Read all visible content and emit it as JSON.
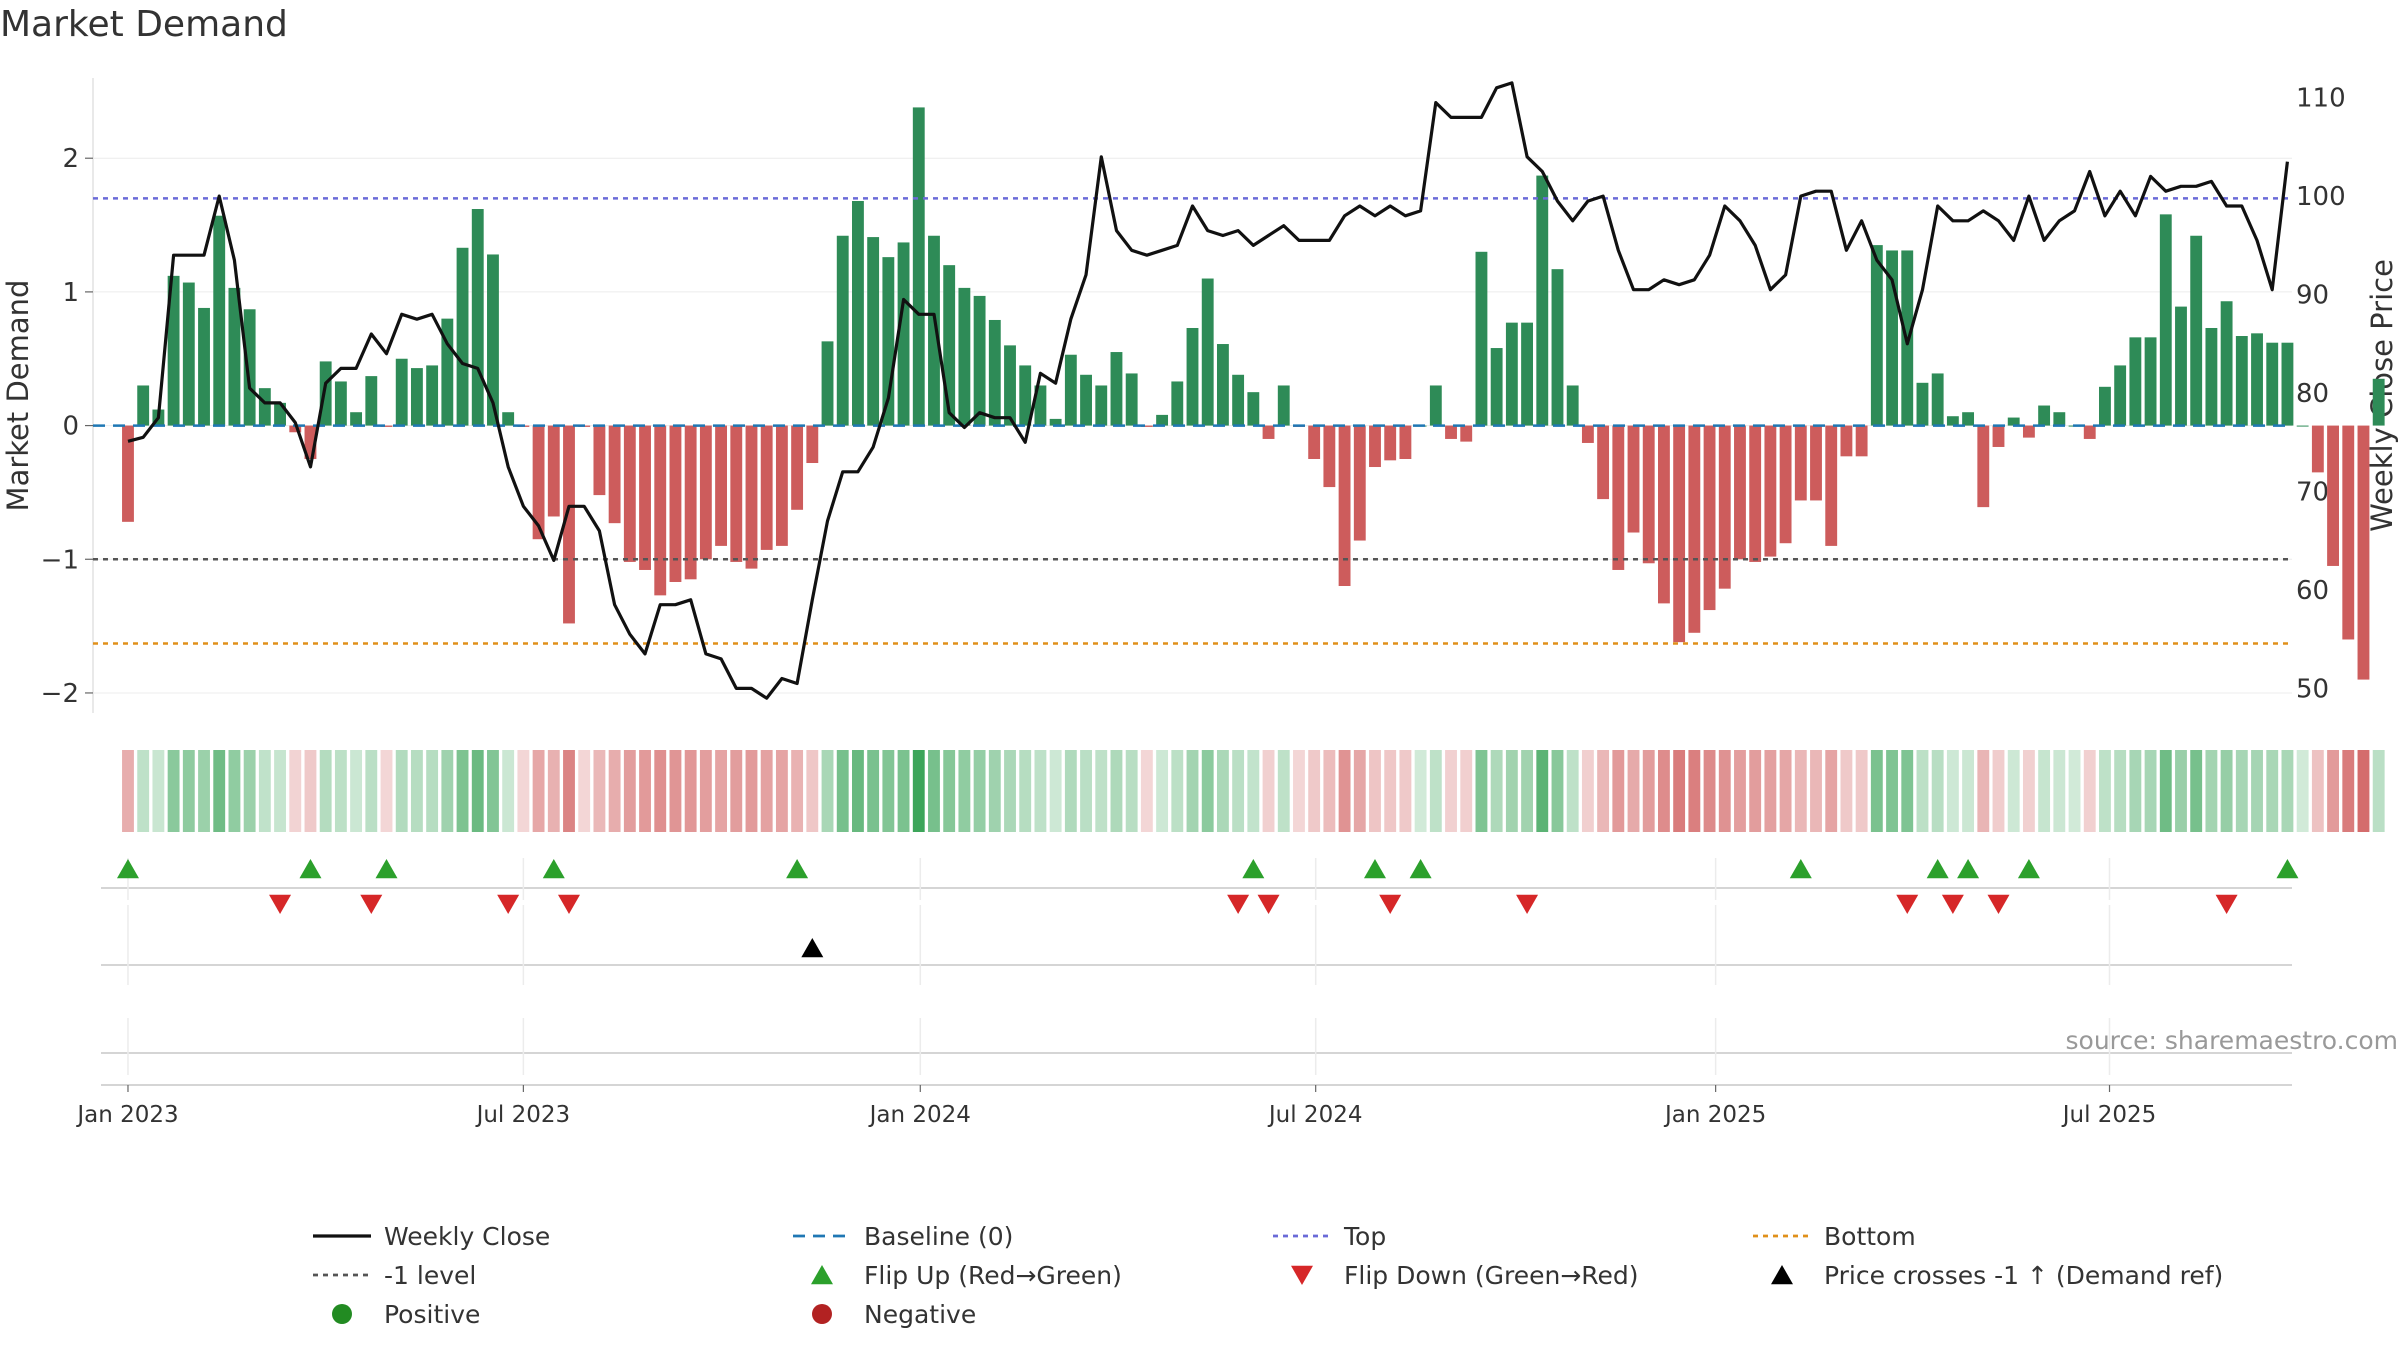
{
  "chart_data": {
    "type": "bar",
    "title": "Market Demand",
    "ylabel": "Market Demand",
    "y2label": "Weekly Close Price",
    "ylim": [
      -2.15,
      2.6
    ],
    "y2lim": [
      47.5,
      112
    ],
    "yticks": [
      -2,
      -1,
      0,
      1,
      2
    ],
    "y2ticks": [
      50,
      60,
      70,
      80,
      90,
      100,
      110
    ],
    "x_range_weeks": [
      -2.3,
      142.3
    ],
    "x_ticks": [
      {
        "label": "Jan 2023",
        "week": 0
      },
      {
        "label": "Jul 2023",
        "week": 26
      },
      {
        "label": "Jan 2024",
        "week": 52.1
      },
      {
        "label": "Jul 2024",
        "week": 78.1
      },
      {
        "label": "Jan 2025",
        "week": 104.4
      },
      {
        "label": "Jul 2025",
        "week": 130.3
      }
    ],
    "reference_lines": {
      "top": 1.7,
      "bottom": -1.63,
      "minus_one": -1.0,
      "baseline": 0
    },
    "demand": [
      -0.72,
      0.3,
      0.12,
      1.12,
      1.07,
      0.88,
      1.57,
      1.03,
      0.87,
      0.28,
      0.17,
      -0.05,
      -0.25,
      0.48,
      0.33,
      0.1,
      0.37,
      -0.01,
      0.5,
      0.43,
      0.45,
      0.8,
      1.33,
      1.62,
      1.28,
      0.1,
      -0.01,
      -0.85,
      -0.68,
      -1.48,
      -0.01,
      -0.52,
      -0.73,
      -1.02,
      -1.08,
      -1.27,
      -1.17,
      -1.15,
      -1.0,
      -0.9,
      -1.02,
      -1.07,
      -0.93,
      -0.9,
      -0.63,
      -0.28,
      0.63,
      1.42,
      1.68,
      1.41,
      1.26,
      1.37,
      2.38,
      1.42,
      1.2,
      1.03,
      0.97,
      0.79,
      0.6,
      0.45,
      0.3,
      0.05,
      0.53,
      0.38,
      0.3,
      0.55,
      0.39,
      -0.01,
      0.08,
      0.33,
      0.73,
      1.1,
      0.61,
      0.38,
      0.25,
      -0.1,
      0.3,
      -0.01,
      -0.25,
      -0.46,
      -1.2,
      -0.86,
      -0.31,
      -0.26,
      -0.25,
      0.0,
      0.3,
      -0.1,
      -0.12,
      1.3,
      0.58,
      0.77,
      0.77,
      1.87,
      1.17,
      0.3,
      -0.13,
      -0.55,
      -1.08,
      -0.8,
      -1.03,
      -1.33,
      -1.62,
      -1.55,
      -1.38,
      -1.22,
      -1.0,
      -1.02,
      -0.98,
      -0.88,
      -0.56,
      -0.56,
      -0.9,
      -0.23,
      -0.23,
      1.35,
      1.31,
      1.31,
      0.32,
      0.39,
      0.07,
      0.1,
      -0.61,
      -0.16,
      0.06,
      -0.09,
      0.15,
      0.1,
      0.0,
      -0.1,
      0.29,
      0.45,
      0.66,
      0.66,
      1.58,
      0.89,
      1.42,
      0.73,
      0.93,
      0.67,
      0.69,
      0.62,
      0.62,
      0.0,
      -0.35,
      -1.05,
      -1.6,
      -1.9,
      0.35
    ],
    "close": [
      75.1,
      75.5,
      77.5,
      94.0,
      94.0,
      94.0,
      100.0,
      93.5,
      80.5,
      79.0,
      79.0,
      77.0,
      72.5,
      81.0,
      82.5,
      82.5,
      86.0,
      84.0,
      88.0,
      87.5,
      88.0,
      85.0,
      83.0,
      82.5,
      79.0,
      72.5,
      68.5,
      66.5,
      63.0,
      68.5,
      68.5,
      66.0,
      58.5,
      55.5,
      53.5,
      58.5,
      58.5,
      59.0,
      53.5,
      53.0,
      50.0,
      50.0,
      49.0,
      51.0,
      50.5,
      59.0,
      67.0,
      72.0,
      72.0,
      74.5,
      79.5,
      89.5,
      88.0,
      88.0,
      78.0,
      76.5,
      78.0,
      77.5,
      77.5,
      75.0,
      82.0,
      81.0,
      87.5,
      92.0,
      104.0,
      96.5,
      94.5,
      94.0,
      94.5,
      95.0,
      99.0,
      96.5,
      96.0,
      96.5,
      95.0,
      96.0,
      97.0,
      95.5,
      95.5,
      95.5,
      98.0,
      99.0,
      98.0,
      99.0,
      98.0,
      98.5,
      109.5,
      108.0,
      108.0,
      108.0,
      111.0,
      111.5,
      104.0,
      102.5,
      99.5,
      97.5,
      99.5,
      100.0,
      94.5,
      90.5,
      90.5,
      91.5,
      91.0,
      91.5,
      94.0,
      99.0,
      97.5,
      95.0,
      90.5,
      92.0,
      100.0,
      100.5,
      100.5,
      94.5,
      97.5,
      93.5,
      91.5,
      85.0,
      90.5,
      99.0,
      97.5,
      97.5,
      98.5,
      97.5,
      95.5,
      100.0,
      95.5,
      97.5,
      98.5,
      102.5,
      98.0,
      100.5,
      98.0,
      102.0,
      100.5,
      101.0,
      101.0,
      101.5,
      99.0,
      99.0,
      95.5,
      90.5,
      103.5
    ],
    "flip_up_weeks": [
      0,
      12,
      17,
      28,
      44,
      74,
      82,
      85,
      110,
      119,
      121,
      125,
      142
    ],
    "flip_down_weeks": [
      10,
      16,
      25,
      29,
      73,
      75,
      83,
      92,
      117,
      120,
      123,
      138
    ],
    "price_crosses_weeks": [
      45
    ],
    "legend": [
      {
        "label": "Weekly Close",
        "marker": "line-solid",
        "color": "#111111"
      },
      {
        "label": "Baseline (0)",
        "marker": "line-dash",
        "color": "#1f77b4"
      },
      {
        "label": "Top",
        "marker": "line-dot",
        "color": "#6a6ad8"
      },
      {
        "label": "Bottom",
        "marker": "line-dot",
        "color": "#e0901a"
      },
      {
        "label": "-1 level",
        "marker": "line-dot",
        "color": "#555555"
      },
      {
        "label": "Flip Up (Red→Green)",
        "marker": "triangle-up",
        "color": "#2ca02c"
      },
      {
        "label": "Flip Down (Green→Red)",
        "marker": "triangle-down",
        "color": "#d62728"
      },
      {
        "label": "Price crosses -1 ↑ (Demand ref)",
        "marker": "triangle-up",
        "color": "#000000"
      },
      {
        "label": "Positive",
        "marker": "circle",
        "color": "#228b22"
      },
      {
        "label": "Negative",
        "marker": "circle",
        "color": "#b22222"
      }
    ],
    "source_text": "source: sharemaestro.com"
  },
  "colors": {
    "positive_bar": "#2e8b57",
    "negative_bar": "#cd5c5c",
    "close_line": "#111111",
    "heat_positive": "#2e9e4e",
    "heat_negative": "#c94545"
  }
}
